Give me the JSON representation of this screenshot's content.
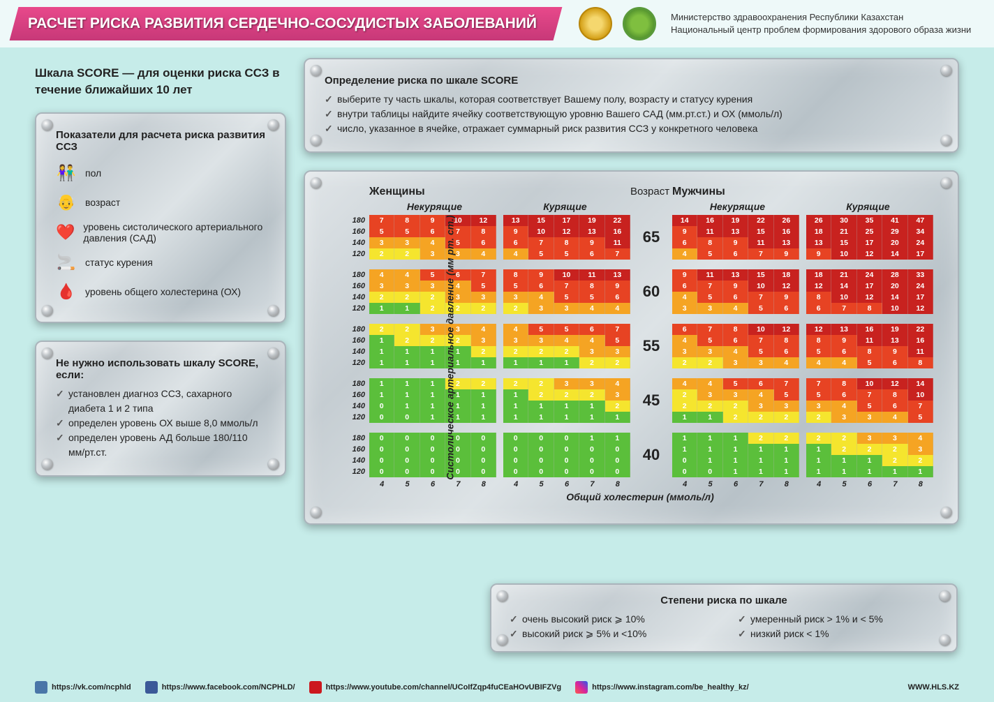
{
  "header": {
    "title": "РАСЧЕТ РИСКА РАЗВИТИЯ СЕРДЕЧНО-СОСУДИСТЫХ ЗАБОЛЕВАНИЙ",
    "ministry_line1": "Министерство здравоохранения Республики Казахстан",
    "ministry_line2": "Национальный центр проблем формирования здорового образа жизни"
  },
  "subtitle": "Шкала SCORE — для оценки риска ССЗ в течение ближайших 10 лет",
  "instructions": {
    "title": "Определение риска по шкале SCORE",
    "items": [
      "выберите ту часть шкалы, которая соответствует Вашему полу, возрасту и статусу курения",
      "внутри таблицы найдите ячейку соответствующую уровню Вашего САД (мм.рт.ст.) и ОХ (ммоль/л)",
      "число, указанное в ячейке, отражает суммарный риск развития ССЗ у конкретного человека"
    ]
  },
  "indicators": {
    "title": "Показатели для расчета риска развития ССЗ",
    "items": [
      {
        "icon": "👫",
        "label": "пол"
      },
      {
        "icon": "👴",
        "label": "возраст"
      },
      {
        "icon": "❤️",
        "label": "уровень систолического артериального давления (САД)"
      },
      {
        "icon": "🚬",
        "label": "статус курения"
      },
      {
        "icon": "🩸",
        "label": "уровень общего холестерина (ОХ)"
      }
    ]
  },
  "exclusions": {
    "title": "Не нужно использовать шкалу SCORE, если:",
    "items": [
      "установлен диагноз ССЗ, сахарного диабета 1 и 2 типа",
      "определен уровень ОХ выше 8,0 ммоль/л",
      "определен уровень АД больше 180/110 мм/рт.ст."
    ]
  },
  "score_table": {
    "gender_labels": [
      "Женщины",
      "Мужчины"
    ],
    "smoking_labels": [
      "Некурящие",
      "Курящие"
    ],
    "age_header": "Возраст",
    "y_axis": "Систолическое артериальное давление (мм рт. ст.)",
    "x_axis": "Общий холестерин (ммоль/л)",
    "bp_levels": [
      "180",
      "160",
      "140",
      "120"
    ],
    "chol_levels": [
      "4",
      "5",
      "6",
      "7",
      "8"
    ],
    "ages": [
      "65",
      "60",
      "55",
      "45",
      "40"
    ],
    "blocks": {
      "65": [
        [
          [
            7,
            8,
            9,
            10,
            12
          ],
          [
            5,
            5,
            6,
            7,
            8
          ],
          [
            3,
            3,
            4,
            5,
            6
          ],
          [
            2,
            2,
            3,
            3,
            4
          ]
        ],
        [
          [
            13,
            15,
            17,
            19,
            22
          ],
          [
            9,
            10,
            12,
            13,
            16
          ],
          [
            6,
            7,
            8,
            9,
            11
          ],
          [
            4,
            5,
            5,
            6,
            7
          ]
        ],
        [
          [
            14,
            16,
            19,
            22,
            26
          ],
          [
            9,
            11,
            13,
            15,
            16
          ],
          [
            6,
            8,
            9,
            11,
            13
          ],
          [
            4,
            5,
            6,
            7,
            9
          ]
        ],
        [
          [
            26,
            30,
            35,
            41,
            47
          ],
          [
            18,
            21,
            25,
            29,
            34
          ],
          [
            13,
            15,
            17,
            20,
            24
          ],
          [
            9,
            10,
            12,
            14,
            17
          ]
        ]
      ],
      "60": [
        [
          [
            4,
            4,
            5,
            6,
            7
          ],
          [
            3,
            3,
            3,
            4,
            5
          ],
          [
            2,
            2,
            2,
            3,
            3
          ],
          [
            1,
            1,
            2,
            2,
            2
          ]
        ],
        [
          [
            8,
            9,
            10,
            11,
            13
          ],
          [
            5,
            6,
            7,
            8,
            9
          ],
          [
            3,
            4,
            5,
            5,
            6
          ],
          [
            2,
            3,
            3,
            4,
            4
          ]
        ],
        [
          [
            9,
            11,
            13,
            15,
            18
          ],
          [
            6,
            7,
            9,
            10,
            12
          ],
          [
            4,
            5,
            6,
            7,
            9
          ],
          [
            3,
            3,
            4,
            5,
            6
          ]
        ],
        [
          [
            18,
            21,
            24,
            28,
            33
          ],
          [
            12,
            14,
            17,
            20,
            24
          ],
          [
            8,
            10,
            12,
            14,
            17
          ],
          [
            6,
            7,
            8,
            10,
            12
          ]
        ]
      ],
      "55": [
        [
          [
            2,
            2,
            3,
            3,
            4
          ],
          [
            1,
            2,
            2,
            2,
            3
          ],
          [
            1,
            1,
            1,
            1,
            2
          ],
          [
            1,
            1,
            1,
            1,
            1
          ]
        ],
        [
          [
            4,
            5,
            5,
            6,
            7
          ],
          [
            3,
            3,
            4,
            4,
            5
          ],
          [
            2,
            2,
            2,
            3,
            3
          ],
          [
            1,
            1,
            1,
            2,
            2
          ]
        ],
        [
          [
            6,
            7,
            8,
            10,
            12
          ],
          [
            4,
            5,
            6,
            7,
            8
          ],
          [
            3,
            3,
            4,
            5,
            6
          ],
          [
            2,
            2,
            3,
            3,
            4
          ]
        ],
        [
          [
            12,
            13,
            16,
            19,
            22
          ],
          [
            8,
            9,
            11,
            13,
            16
          ],
          [
            5,
            6,
            8,
            9,
            11
          ],
          [
            4,
            4,
            5,
            6,
            8
          ]
        ]
      ],
      "45": [
        [
          [
            1,
            1,
            1,
            2,
            2
          ],
          [
            1,
            1,
            1,
            1,
            1
          ],
          [
            0,
            1,
            1,
            1,
            1
          ],
          [
            0,
            0,
            1,
            1,
            1
          ]
        ],
        [
          [
            2,
            2,
            3,
            3,
            4
          ],
          [
            1,
            2,
            2,
            2,
            3
          ],
          [
            1,
            1,
            1,
            1,
            2
          ],
          [
            1,
            1,
            1,
            1,
            1
          ]
        ],
        [
          [
            4,
            4,
            5,
            6,
            7
          ],
          [
            2,
            3,
            3,
            4,
            5
          ],
          [
            2,
            2,
            2,
            3,
            3
          ],
          [
            1,
            1,
            2,
            2,
            2
          ]
        ],
        [
          [
            7,
            8,
            10,
            12,
            14
          ],
          [
            5,
            6,
            7,
            8,
            10
          ],
          [
            3,
            4,
            5,
            6,
            7
          ],
          [
            2,
            3,
            3,
            4,
            5
          ]
        ]
      ],
      "40": [
        [
          [
            0,
            0,
            0,
            0,
            0
          ],
          [
            0,
            0,
            0,
            0,
            0
          ],
          [
            0,
            0,
            0,
            0,
            0
          ],
          [
            0,
            0,
            0,
            0,
            0
          ]
        ],
        [
          [
            0,
            0,
            0,
            1,
            1
          ],
          [
            0,
            0,
            0,
            0,
            0
          ],
          [
            0,
            0,
            0,
            0,
            0
          ],
          [
            0,
            0,
            0,
            0,
            0
          ]
        ],
        [
          [
            1,
            1,
            1,
            2,
            2
          ],
          [
            1,
            1,
            1,
            1,
            1
          ],
          [
            0,
            1,
            1,
            1,
            1
          ],
          [
            0,
            0,
            1,
            1,
            1
          ]
        ],
        [
          [
            2,
            2,
            3,
            3,
            4
          ],
          [
            1,
            2,
            2,
            2,
            3
          ],
          [
            1,
            1,
            1,
            2,
            2
          ],
          [
            1,
            1,
            1,
            1,
            1
          ]
        ]
      ]
    },
    "colors": {
      "darkred": "#c8221f",
      "red": "#e74323",
      "orange": "#f5a423",
      "yellow": "#f5e52e",
      "green": "#5bbf3b"
    }
  },
  "legend": {
    "title": "Степени риска по шкале",
    "items_left": [
      "очень высокий риск  ⩾ 10%",
      "высокий риск  ⩾ 5% и <10%"
    ],
    "items_right": [
      "умеренный риск  > 1% и < 5%",
      "низкий риск  < 1%"
    ]
  },
  "footer": {
    "links": [
      {
        "icon": "vk",
        "url": "https://vk.com/ncphld"
      },
      {
        "icon": "fb",
        "url": "https://www.facebook.com/NCPHLD/"
      },
      {
        "icon": "yt",
        "url": "https://www.youtube.com/channel/UCoIfZqp4fuCEaHOvUBIFZVg"
      },
      {
        "icon": "ig",
        "url": "https://www.instagram.com/be_healthy_kz/"
      }
    ],
    "site": "WWW.HLS.KZ"
  }
}
